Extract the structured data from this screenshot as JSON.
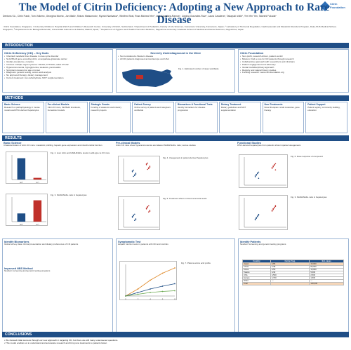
{
  "header": {
    "title": "The Model of Citrin Deficiency: Adopting a New Approach to Rare Disease",
    "authors": "Dentons KL¹, Citrin Fund², Tom Volkers¹, Georgina Morris¹, Jun Maki³, Shinzo Matsumoto³, Kiyoshi Narisawa⁴, Winifred Seal, Ross Micheal Yen⁵, Luis Alcantara-Ramos⁶, Jorgina Gonzalez-Ruiz⁶, Laura Cavalera⁶, Takayuki Ichiki⁶, Yen Yen Yen, Takeshi Fukuda⁶",
    "affiliations": "¹ Citrin Foundation, Singapore; ² University Children's Hospital Zürich and Children's Research Center, University of Zürich, Switzerland; ³ Department of Pediatrics, Faculty of Life Sciences, Kumamoto University, Kumamoto, Japan; ⁴ Laboratory of Hormonal Regulation, Cardiovascular and Metabolic Disorders Program, Duke-NUS Medical School, Singapore; ⁵ Departamento de Biología Molecular, Universidad Autónoma de Madrid, Madrid, Spain; ⁶ Department of Hygiene and Health Promotion Medicine, Kagoshima University Graduate School of Medical and Dental Sciences, Kagoshima, Japan",
    "logo_text": "Citrin Foundation"
  },
  "sections": {
    "introduction": "INTRODUCTION",
    "methods": "METHODS",
    "results": "RESULTS",
    "conclusions": "CONCLUSIONS"
  },
  "intro": {
    "col1_title": "Citrin Deficiency (CD) – Key facts",
    "col1": [
      "Inherited metabolic liver disease in urea cycle disorder",
      "SLC25A13 gene encoding citrin, an aspartate-glutamate carrier",
      "Global, prevalence, complex",
      "Involves multiple organ systems: NICCD, FTTDCD, adult CTLN2",
      "Hyperammonemia, hypoglycemia, steatosis, pancreatitis",
      "Symptoms depend on age of onset",
      "Diagnosis: genetic testing, amino acid analysis",
      "No approved therapy; dietary management",
      "Current treatment: low carbohydrate, MCT supplementation"
    ],
    "col2_title": "Severely Underdiagnosed in the West",
    "col2": [
      "Not considered a Western disease",
      "All CD patients diagnosed across Europe and USA"
    ],
    "col2_caption": "Fig. 1. Estimated number of cases worldwide",
    "col3_title": "Citrin Foundation",
    "col3": [
      "Non-profit, research-driven, patient-centric",
      "Mission: Find a cure for CD patients through research",
      "Collaborative approach with researchers and clinicians",
      "Patient engagement and advocacy",
      "Global multidisciplinary approach",
      "Registry and natural history studies",
      "Funding research: www.citrinfoundation.org"
    ]
  },
  "methods": [
    {
      "h": "Basic Science",
      "b": "Research on pathophysiology in mouse models and iPSC-derived hepatocytes"
    },
    {
      "h": "Pre-clinical Models",
      "b": "Citrin KO mice, Slc25a13 knockouts, humanized models"
    },
    {
      "h": "Strategic Grants",
      "b": "Funding of academic and industry research projects"
    },
    {
      "h": "Patient Survey",
      "b": "Online survey of patients and caregivers worldwide"
    },
    {
      "h": "Biomarkers & Functional Tests",
      "b": "Identify biomarkers for disease progression"
    },
    {
      "h": "Dietary Treatment",
      "b": "Dietary guidelines and MCT supplementation"
    },
    {
      "h": "New Treatments",
      "b": "Novel therapies: small molecules, gene therapy"
    },
    {
      "h": "Patient Support",
      "b": "Patient registry, community building, education"
    }
  ],
  "results": {
    "basic_title": "Basic Science",
    "basic_text": "Characterization of citrin KO mice: metabolic profiling, hepatic gene expression and mitochondrial function",
    "preclin_title": "Pre-clinical Models",
    "preclin_text": "Citrin KO mice show hyperammonemia and altered NADH/NAD+ ratio; rescue studies",
    "col3_title": "Functional Studies",
    "col3_text": "iPSC-derived hepatocytes from patients show impaired ureagenesis",
    "fig2_caption": "Fig. 2. Liver citrin and NADH/NAD+ levels in wild-type vs KO mice",
    "fig3_caption": "Fig. 3. NADH/NAD+ ratio in hepatocytes",
    "fig4_caption": "Fig. 4. Ureagenesis in patient-derived hepatocytes",
    "fig5_caption": "Fig. 5. Treatment effect on blood ammonia levels",
    "fig6_caption": "Fig. 6. Dose response of compound",
    "diet_title": "Identify Biomarkers",
    "diet_text": "Global survey data: clinical presentation and dietary preferences of CD patients",
    "dx_title": "Improved NBS Method",
    "symptom_title": "Symptomatic Test",
    "symptom_text": "Hepatic function tests in patients with CD and controls",
    "fig7_caption": "Fig. 7. Plasma amino acid profile",
    "identify_title": "Identify Patients",
    "identify_text": "Newborn screening and genetic testing programs",
    "table_headers": [
      "Country",
      "Carrier freq.",
      "Est. cases"
    ],
    "table_rows": [
      [
        "Japan",
        "1/65",
        "15,000"
      ],
      [
        "China",
        "1/48",
        "80,000"
      ],
      [
        "Korea",
        "1/50",
        "10,000"
      ],
      [
        "Taiwan",
        "1/42",
        "5,000"
      ],
      [
        "USA",
        "1/500",
        "2,500"
      ],
      [
        "Europe",
        "1/700",
        "1,500"
      ],
      [
        "Other",
        "—",
        "—"
      ],
      [
        "Total",
        "",
        "120,000"
      ]
    ]
  },
  "conclusions": [
    "We showed initial success through our new approach in targeting CD, but there are still many unanswered questions.",
    "This model enables us to understand and accelerate research and bring new treatments to patients faster."
  ],
  "colors": {
    "primary": "#1f4e86",
    "accent": "#c0302a",
    "map_highlight": "#1f4e86"
  },
  "chart_data": [
    {
      "type": "bar",
      "categories": [
        "WT",
        "KO"
      ],
      "series": [
        {
          "values": [
            100,
            8
          ]
        }
      ]
    },
    {
      "type": "bar",
      "categories": [
        "WT",
        "KO"
      ],
      "series": [
        {
          "values": [
            1.0,
            2.6
          ]
        }
      ]
    },
    {
      "type": "line",
      "x": [
        0,
        2,
        4,
        6,
        8
      ],
      "series": [
        {
          "values": [
            0,
            20,
            45,
            65,
            80
          ]
        },
        {
          "values": [
            0,
            10,
            20,
            28,
            35
          ]
        },
        {
          "values": [
            0,
            5,
            10,
            13,
            15
          ]
        }
      ]
    }
  ]
}
